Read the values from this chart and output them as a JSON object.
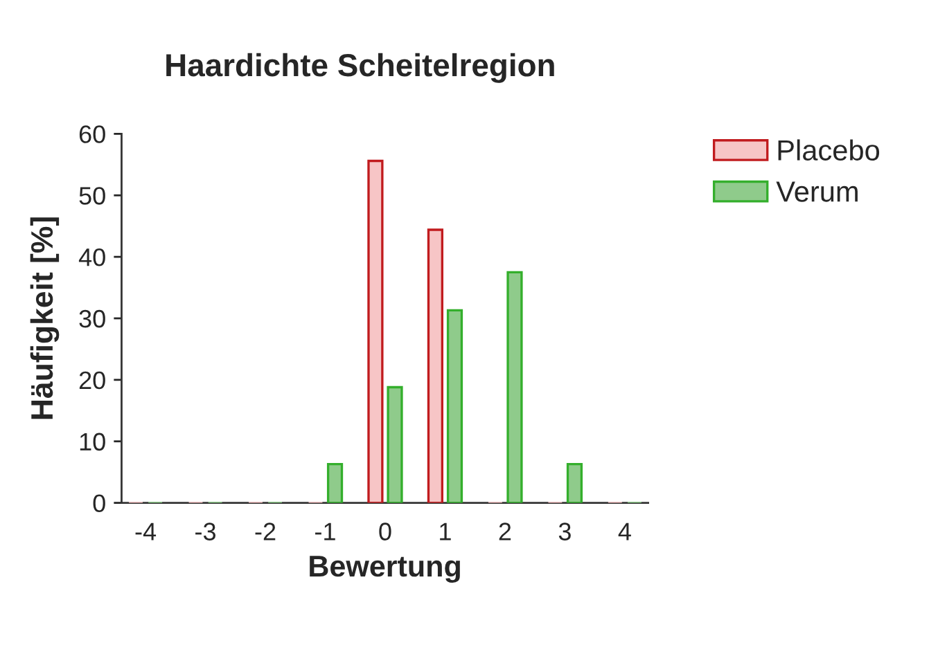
{
  "chart_data": {
    "type": "bar",
    "title": "Haardichte Scheitelregion",
    "xlabel": "Bewertung",
    "ylabel": "Häufigkeit [%]",
    "categories": [
      "-4",
      "-3",
      "-2",
      "-1",
      "0",
      "1",
      "2",
      "3",
      "4"
    ],
    "series": [
      {
        "name": "Placebo",
        "color": "#f7c5c6",
        "values": [
          0,
          0,
          0,
          0,
          55.6,
          44.4,
          0,
          0,
          0
        ]
      },
      {
        "name": "Verum",
        "color": "#8fcb8b",
        "values": [
          0,
          0,
          0,
          6.3,
          18.8,
          31.3,
          37.5,
          6.3,
          0
        ]
      }
    ],
    "ylim": [
      0,
      60
    ],
    "yticks": [
      0,
      10,
      20,
      30,
      40,
      50,
      60
    ],
    "grid": false,
    "legend": "top right"
  }
}
